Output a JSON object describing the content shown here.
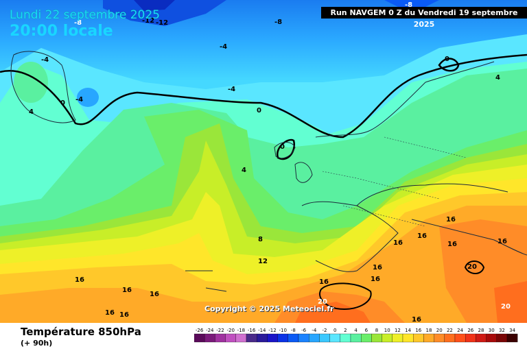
{
  "header": {
    "date": "Lundi 22 septembre 2025",
    "time": "20:00 locale",
    "run": "Run NAVGEM 0 Z du Vendredi 19 septembre 2025"
  },
  "copyright": "Copyright © 2025 Meteociel.fr",
  "footer": {
    "title": "Température 850hPa",
    "subtitle": "(+ 90h)"
  },
  "scale": {
    "ticks": [
      "-26",
      "-24",
      "-22",
      "-20",
      "-18",
      "-16",
      "-14",
      "-12",
      "-10",
      "-8",
      "-6",
      "-4",
      "-2",
      "0",
      "2",
      "4",
      "6",
      "8",
      "10",
      "12",
      "14",
      "16",
      "18",
      "20",
      "22",
      "24",
      "26",
      "28",
      "30",
      "32",
      "34"
    ],
    "colors": [
      "#5a0a5a",
      "#7a1a7a",
      "#a032a0",
      "#c050c0",
      "#d070d0",
      "#4a2a8a",
      "#2a1a9a",
      "#1a14c8",
      "#0a32e6",
      "#0a5af5",
      "#1a82ff",
      "#28a6ff",
      "#3ac8ff",
      "#5ae6ff",
      "#62ffd2",
      "#5af0a0",
      "#6aee6a",
      "#9ae63a",
      "#c8ee28",
      "#eef028",
      "#ffe62a",
      "#ffc82a",
      "#ffaa28",
      "#ff8c28",
      "#ff6e1e",
      "#ff501a",
      "#f03218",
      "#d01a14",
      "#a80a0a",
      "#7a0505",
      "#3a0000"
    ]
  },
  "map_labels": [
    {
      "text": "-12"
    },
    {
      "text": "-12"
    },
    {
      "text": "-8"
    },
    {
      "text": "-8"
    },
    {
      "text": "-8"
    },
    {
      "text": "-4"
    },
    {
      "text": "-4"
    },
    {
      "text": "-4"
    },
    {
      "text": "-4"
    },
    {
      "text": "0"
    },
    {
      "text": "0"
    },
    {
      "text": "0"
    },
    {
      "text": "0"
    },
    {
      "text": "4"
    },
    {
      "text": "4"
    },
    {
      "text": "4"
    },
    {
      "text": "8"
    },
    {
      "text": "12"
    },
    {
      "text": "16"
    },
    {
      "text": "16"
    },
    {
      "text": "16"
    },
    {
      "text": "16"
    },
    {
      "text": "16"
    },
    {
      "text": "16"
    },
    {
      "text": "16"
    },
    {
      "text": "16"
    },
    {
      "text": "16"
    },
    {
      "text": "16"
    },
    {
      "text": "16"
    },
    {
      "text": "16"
    },
    {
      "text": "16"
    },
    {
      "text": "16"
    },
    {
      "text": "20"
    },
    {
      "text": "20"
    },
    {
      "text": "20"
    }
  ]
}
